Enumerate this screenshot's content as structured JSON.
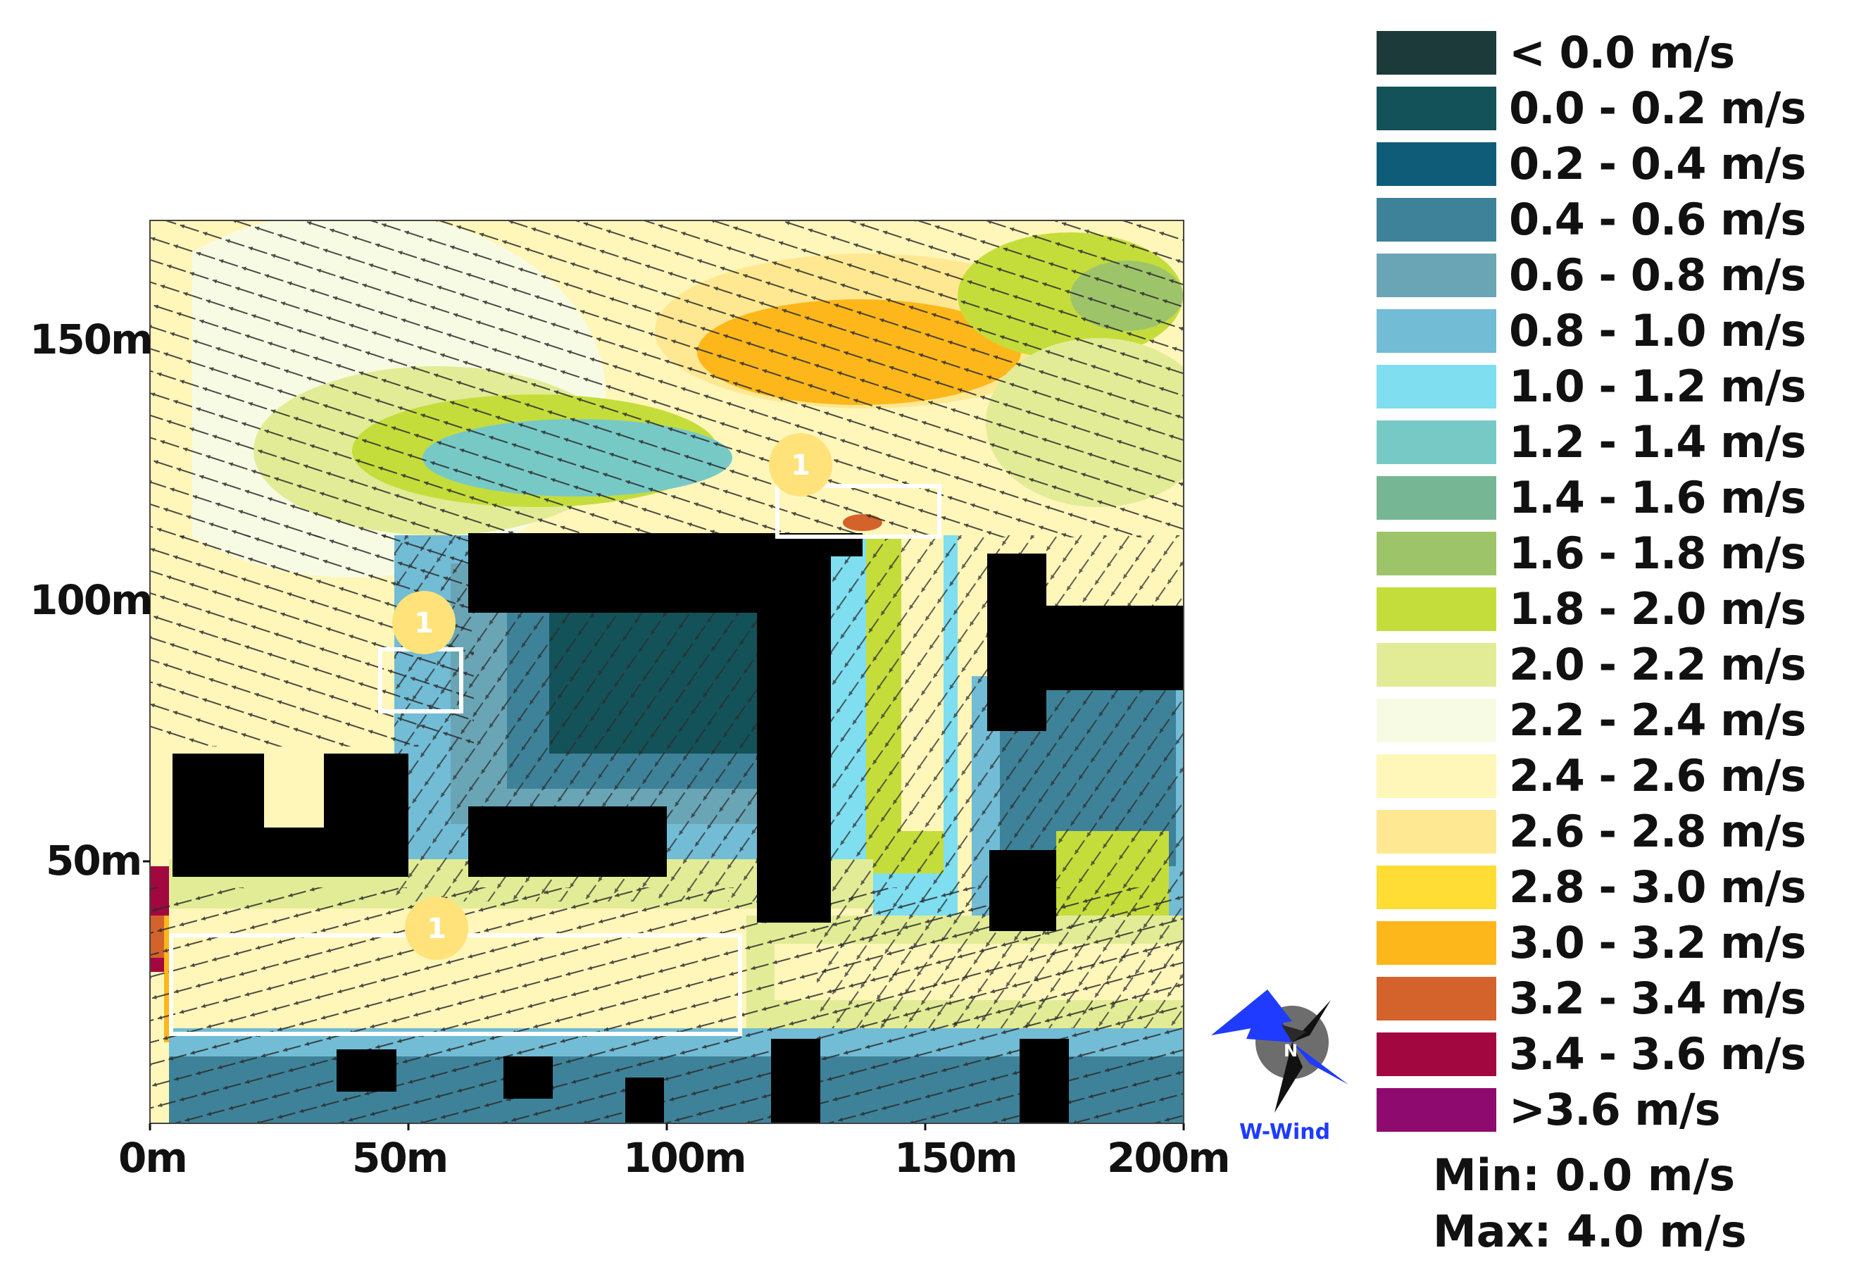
{
  "axes": {
    "x_ticks": [
      "0m",
      "50m",
      "100m",
      "150m",
      "200m"
    ],
    "y_ticks": [
      "50m",
      "100m",
      "150m"
    ]
  },
  "legend": [
    {
      "label": "< 0.0 m/s",
      "color": "#1d3a3a"
    },
    {
      "label": "0.0 - 0.2 m/s",
      "color": "#145259"
    },
    {
      "label": "0.2 - 0.4 m/s",
      "color": "#0f5c79"
    },
    {
      "label": "0.4 - 0.6 m/s",
      "color": "#3e8299"
    },
    {
      "label": "0.6 - 0.8 m/s",
      "color": "#6aa5b6"
    },
    {
      "label": "0.8 - 1.0 m/s",
      "color": "#72bcd5"
    },
    {
      "label": "1.0 - 1.2 m/s",
      "color": "#7fdef0"
    },
    {
      "label": "1.2 - 1.4 m/s",
      "color": "#77c9c6"
    },
    {
      "label": "1.4 - 1.6 m/s",
      "color": "#77b694"
    },
    {
      "label": "1.6 - 1.8 m/s",
      "color": "#9ec46a"
    },
    {
      "label": "1.8 - 2.0 m/s",
      "color": "#c5dd3b"
    },
    {
      "label": "2.0 - 2.2 m/s",
      "color": "#e2ec96"
    },
    {
      "label": "2.2 - 2.4 m/s",
      "color": "#f8fbe4"
    },
    {
      "label": "2.4 - 2.6 m/s",
      "color": "#fff6ba"
    },
    {
      "label": "2.6 - 2.8 m/s",
      "color": "#ffe891"
    },
    {
      "label": "2.8 - 3.0 m/s",
      "color": "#ffdd35"
    },
    {
      "label": "3.0 - 3.2 m/s",
      "color": "#fdb71b"
    },
    {
      "label": "3.2 - 3.4 m/s",
      "color": "#d4622b"
    },
    {
      "label": "3.4 - 3.6 m/s",
      "color": "#a3073f"
    },
    {
      "label": ">3.6 m/s",
      "color": "#8f0a6e"
    }
  ],
  "stats": {
    "min": "Min: 0.0 m/s",
    "max": "Max: 4.0 m/s"
  },
  "compass": {
    "north": "N",
    "wind_label": "W-Wind"
  },
  "markers": [
    {
      "label": "1"
    },
    {
      "label": "1"
    },
    {
      "label": "1"
    }
  ]
}
